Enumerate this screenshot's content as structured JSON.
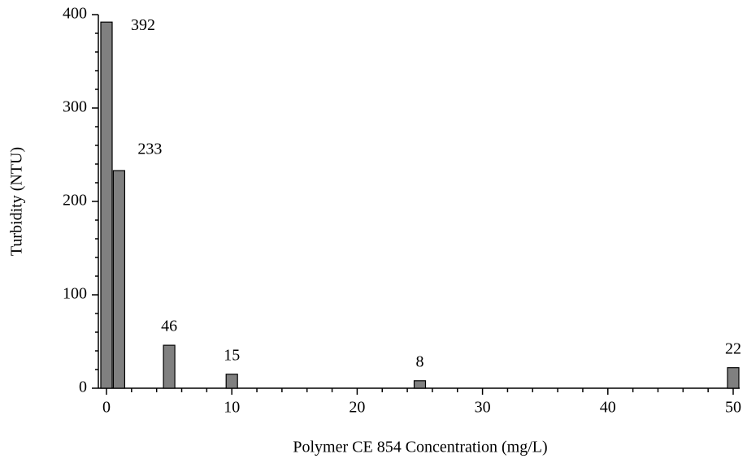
{
  "chart_data": {
    "type": "bar",
    "x_label": "Polymer CE 854 Concentration (mg/L)",
    "y_label": "Turbidity (NTU)",
    "x": [
      0,
      1,
      5,
      10,
      25,
      50
    ],
    "values": [
      392,
      233,
      46,
      15,
      8,
      22
    ],
    "color": "#808080",
    "xlim": [
      0,
      50
    ],
    "xticks": [
      0,
      10,
      20,
      30,
      40,
      50
    ],
    "xminorticks": [
      2,
      4,
      6,
      8,
      12,
      14,
      16,
      18,
      22,
      24,
      26,
      28,
      32,
      34,
      36,
      38,
      42,
      44,
      46,
      48
    ],
    "ylim": [
      0,
      400
    ],
    "yticks": [
      0,
      100,
      200,
      300,
      400
    ],
    "yminorticks": [
      20,
      40,
      60,
      80,
      120,
      140,
      160,
      180,
      220,
      240,
      260,
      280,
      320,
      340,
      360,
      380
    ],
    "grid": false
  }
}
